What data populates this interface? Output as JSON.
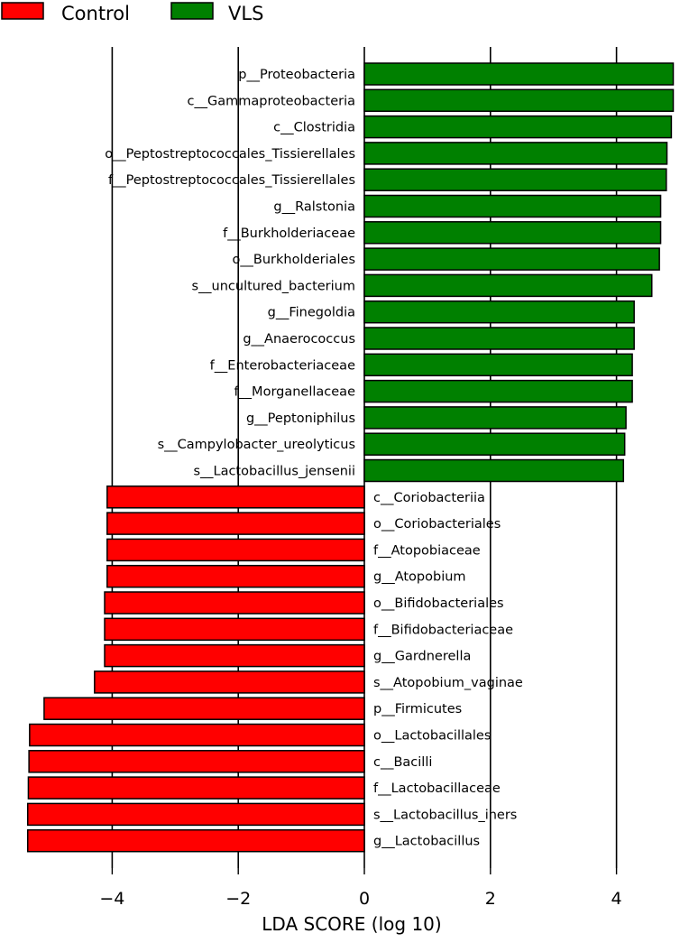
{
  "chart_data": {
    "type": "bar",
    "orientation": "horizontal",
    "xlabel": "LDA SCORE (log 10)",
    "xlim": [
      -5.65,
      4.9
    ],
    "xticks": [
      -4,
      -2,
      0,
      2,
      4
    ],
    "xtick_labels": [
      "−4",
      "−2",
      "0",
      "2",
      "4"
    ],
    "grid": "vertical lines at x ticks",
    "legend_position": "top-left",
    "legend": [
      {
        "name": "Control",
        "color": "#ff0000"
      },
      {
        "name": "VLS",
        "color": "#008000"
      }
    ],
    "categories": [
      "p__Proteobacteria",
      "c__Gammaproteobacteria",
      "c__Clostridia",
      "o__Peptostreptococcales_Tissierellales",
      "f__Peptostreptococcales_Tissierellales",
      "g__Ralstonia",
      "f__Burkholderiaceae",
      "o__Burkholderiales",
      "s__uncultured_bacterium",
      "g__Finegoldia",
      "g__Anaerococcus",
      "f__Enterobacteriaceae",
      "f__Morganellaceae",
      "g__Peptoniphilus",
      "s__Campylobacter_ureolyticus",
      "s__Lactobacillus_jensenii",
      "c__Coriobacteriia",
      "o__Coriobacteriales",
      "f__Atopobiaceae",
      "g__Atopobium",
      "o__Bifidobacteriales",
      "f__Bifidobacteriaceae",
      "g__Gardnerella",
      "s__Atopobium_vaginae",
      "p__Firmicutes",
      "o__Lactobacillales",
      "c__Bacilli",
      "f__Lactobacillaceae",
      "s__Lactobacillus_iners",
      "g__Lactobacillus"
    ],
    "values": [
      4.9,
      4.9,
      4.87,
      4.8,
      4.79,
      4.7,
      4.7,
      4.68,
      4.56,
      4.28,
      4.28,
      4.25,
      4.25,
      4.15,
      4.13,
      4.11,
      -4.08,
      -4.08,
      -4.08,
      -4.08,
      -4.12,
      -4.12,
      -4.12,
      -4.28,
      -5.08,
      -5.31,
      -5.32,
      -5.33,
      -5.34,
      -5.34
    ],
    "groups": [
      "VLS",
      "VLS",
      "VLS",
      "VLS",
      "VLS",
      "VLS",
      "VLS",
      "VLS",
      "VLS",
      "VLS",
      "VLS",
      "VLS",
      "VLS",
      "VLS",
      "VLS",
      "VLS",
      "Control",
      "Control",
      "Control",
      "Control",
      "Control",
      "Control",
      "Control",
      "Control",
      "Control",
      "Control",
      "Control",
      "Control",
      "Control",
      "Control"
    ]
  }
}
